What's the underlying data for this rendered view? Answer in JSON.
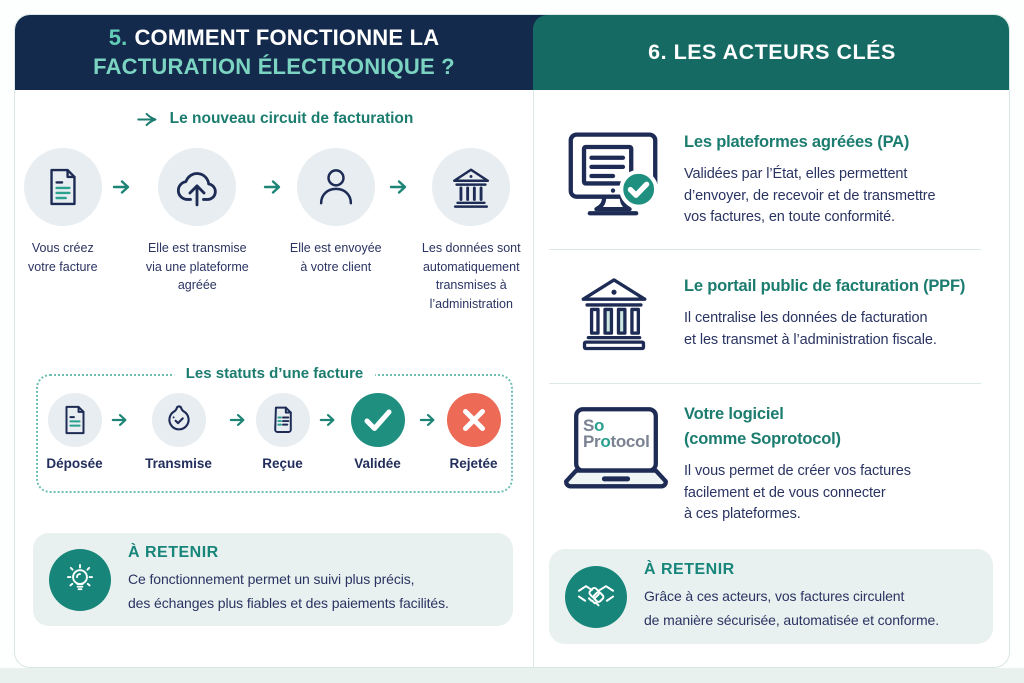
{
  "colors": {
    "navy_header": "#142A4D",
    "teal_header": "#156A63",
    "accent_teal": "#1B7C6F",
    "mint_text": "#7BD4C1",
    "text_navy": "#2A3462",
    "icon_stroke": "#1D2B55",
    "icon_circle_bg": "#E7EDF0",
    "note_bg": "#E8F1EF",
    "note_circle": "#17857A",
    "valid_green": "#1F9080",
    "reject_red": "#EC6A56",
    "divider": "#DCEAE7"
  },
  "left": {
    "header": {
      "number": "5.",
      "line1": "COMMENT FONCTIONNE LA",
      "line2": "FACTURATION ÉLECTRONIQUE ?"
    },
    "circuit": {
      "title_icon": "dart-arrow-icon",
      "title": "Le nouveau circuit de facturation",
      "steps": [
        {
          "icon": "invoice-document-icon",
          "caption": [
            "Vous créez",
            "votre facture"
          ]
        },
        {
          "icon": "cloud-upload-icon",
          "caption": [
            "Elle est transmise",
            "via une plateforme",
            "agréée"
          ]
        },
        {
          "icon": "person-icon",
          "caption": [
            "Elle est envoyée",
            "à votre client"
          ]
        },
        {
          "icon": "bank-icon",
          "caption": [
            "Les données sont",
            "automatiquement",
            "transmises à",
            "l’administration"
          ]
        }
      ]
    },
    "statuses": {
      "title": "Les statuts d’une facture",
      "items": [
        {
          "icon": "deposited-invoice-icon",
          "label": "Déposée"
        },
        {
          "icon": "transmitted-seal-icon",
          "label": "Transmise"
        },
        {
          "icon": "received-receipt-icon",
          "label": "Reçue"
        },
        {
          "icon": "check-circle-icon",
          "label": "Validée"
        },
        {
          "icon": "cross-circle-icon",
          "label": "Rejetée"
        }
      ]
    },
    "note": {
      "icon": "lightbulb-icon",
      "title": "À RETENIR",
      "body": [
        "Ce fonctionnement permet un suivi plus précis,",
        "des échanges plus fiables et des paiements facilités."
      ]
    }
  },
  "right": {
    "header": {
      "title": "6. LES ACTEURS CLÉS"
    },
    "actors": [
      {
        "icon": "monitor-check-icon",
        "title": [
          "Les plateformes agréées (PA)"
        ],
        "body": [
          "Validées par l’État, elles permettent",
          "d’envoyer, de recevoir et de transmettre",
          "vos factures, en toute conformité."
        ]
      },
      {
        "icon": "bank-icon",
        "title": [
          "Le portail public de facturation (PPF)"
        ],
        "body": [
          "Il centralise les données de facturation",
          "et les transmet à l’administration fiscale."
        ]
      },
      {
        "icon": "laptop-icon",
        "logo": {
          "l1a": "S",
          "l1b": "o",
          "l2a": "Pr",
          "l2b": "o",
          "l2c": "tocol"
        },
        "title": [
          "Votre logiciel",
          "(comme Soprotocol)"
        ],
        "body": [
          "Il vous permet de créer vos factures",
          "facilement et de vous connecter",
          "à ces plateformes."
        ]
      }
    ],
    "note": {
      "icon": "handshake-icon",
      "title": "À RETENIR",
      "body": [
        "Grâce à ces acteurs, vos factures circulent",
        "de manière sécurisée, automatisée et conforme."
      ]
    }
  }
}
